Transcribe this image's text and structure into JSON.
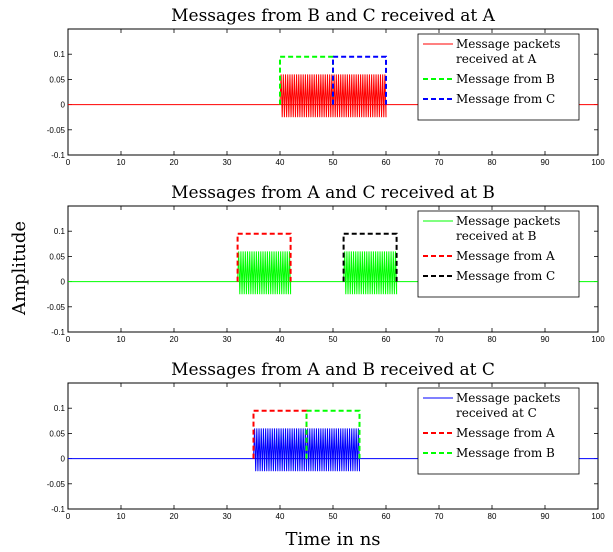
{
  "figure": {
    "ylabel": "Amplitude",
    "xlabel": "Time in ns"
  },
  "chart_data": [
    {
      "type": "line",
      "title": "Messages from B and C received at A",
      "xlim": [
        0,
        100
      ],
      "ylim": [
        -0.1,
        0.15
      ],
      "xticks": [
        "0",
        "10",
        "20",
        "30",
        "40",
        "50",
        "60",
        "70",
        "80",
        "90",
        "100"
      ],
      "yticks": [
        "0.1",
        "0.05",
        "0",
        "-0.05",
        "-0.1"
      ],
      "series": [
        {
          "name": "Message packets received at A",
          "legend_lines": [
            "Message packets",
            "received at A"
          ],
          "color": "#ff0000",
          "style": "solid",
          "baseline": 0,
          "pulses": [
            {
              "start": 40,
              "end": 60,
              "count": 24,
              "peak": 0.06,
              "trough": -0.025
            }
          ]
        },
        {
          "name": "Message from B",
          "legend_lines": [
            "Message from B"
          ],
          "color": "#00ff00",
          "style": "dashed",
          "envelope": {
            "start": 40,
            "end": 50,
            "level": 0.095
          }
        },
        {
          "name": "Message from C",
          "legend_lines": [
            "Message from C"
          ],
          "color": "#0000ff",
          "style": "dashed",
          "envelope": {
            "start": 50,
            "end": 60,
            "level": 0.095
          }
        }
      ]
    },
    {
      "type": "line",
      "title": "Messages from A and C received at B",
      "xlim": [
        0,
        100
      ],
      "ylim": [
        -0.1,
        0.15
      ],
      "xticks": [
        "0",
        "10",
        "20",
        "30",
        "40",
        "50",
        "60",
        "70",
        "80",
        "90",
        "100"
      ],
      "yticks": [
        "0.1",
        "0.05",
        "0",
        "-0.05",
        "-0.1"
      ],
      "series": [
        {
          "name": "Message packets received at B",
          "legend_lines": [
            "Message packets",
            "received at B"
          ],
          "color": "#00ff00",
          "style": "solid",
          "baseline": 0,
          "pulses": [
            {
              "start": 32,
              "end": 42,
              "count": 12,
              "peak": 0.06,
              "trough": -0.025
            },
            {
              "start": 52,
              "end": 62,
              "count": 12,
              "peak": 0.06,
              "trough": -0.025
            }
          ]
        },
        {
          "name": "Message from A",
          "legend_lines": [
            "Message from A"
          ],
          "color": "#ff0000",
          "style": "dashed",
          "envelope": {
            "start": 32,
            "end": 42,
            "level": 0.095
          }
        },
        {
          "name": "Message from C",
          "legend_lines": [
            "Message from C"
          ],
          "color": "#000000",
          "style": "dashed",
          "envelope": {
            "start": 52,
            "end": 62,
            "level": 0.095
          }
        }
      ]
    },
    {
      "type": "line",
      "title": "Messages from A and B received at C",
      "xlim": [
        0,
        100
      ],
      "ylim": [
        -0.1,
        0.15
      ],
      "xticks": [
        "0",
        "10",
        "20",
        "30",
        "40",
        "50",
        "60",
        "70",
        "80",
        "90",
        "100"
      ],
      "yticks": [
        "0.1",
        "0.05",
        "0",
        "-0.05",
        "-0.1"
      ],
      "series": [
        {
          "name": "Message packets received at C",
          "legend_lines": [
            "Message packets",
            "received at C"
          ],
          "color": "#0000ff",
          "style": "solid",
          "baseline": 0,
          "pulses": [
            {
              "start": 35,
              "end": 55,
              "count": 24,
              "peak": 0.06,
              "trough": -0.025
            }
          ]
        },
        {
          "name": "Message from A",
          "legend_lines": [
            "Message from A"
          ],
          "color": "#ff0000",
          "style": "dashed",
          "envelope": {
            "start": 35,
            "end": 45,
            "level": 0.095
          }
        },
        {
          "name": "Message from B",
          "legend_lines": [
            "Message from B"
          ],
          "color": "#00ff00",
          "style": "dashed",
          "envelope": {
            "start": 45,
            "end": 55,
            "level": 0.095
          }
        }
      ]
    }
  ]
}
